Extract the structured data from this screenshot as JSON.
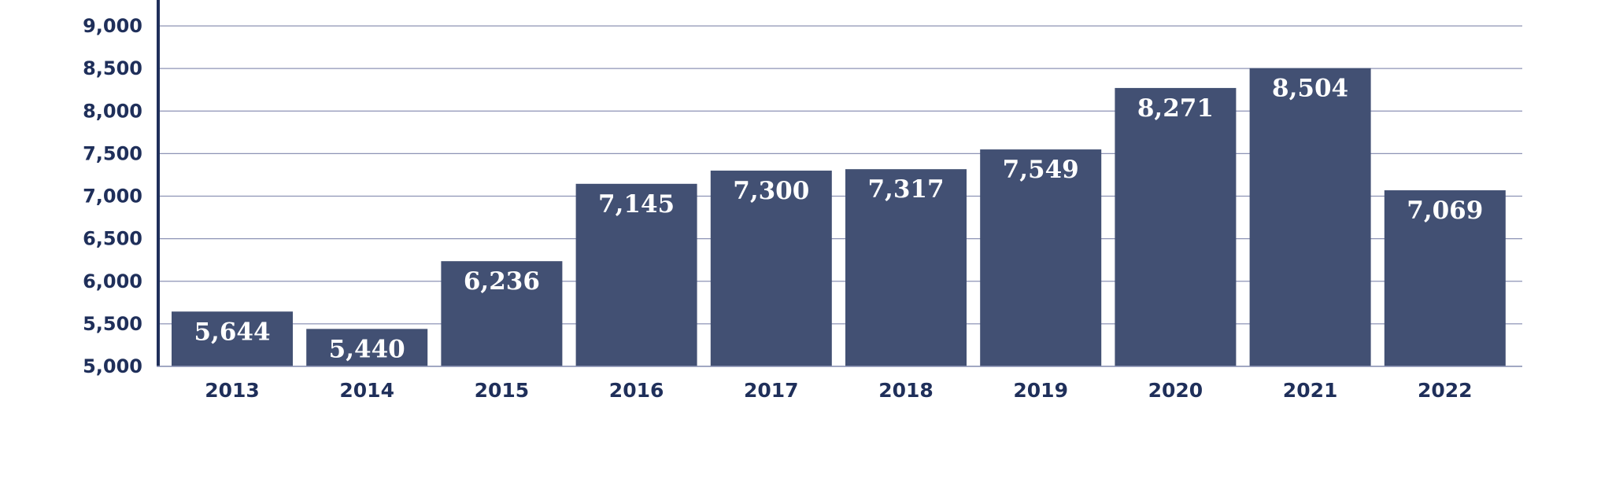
{
  "chart_data": {
    "type": "bar",
    "title": "",
    "xlabel": "",
    "ylabel": "",
    "categories": [
      "2013",
      "2014",
      "2015",
      "2016",
      "2017",
      "2018",
      "2019",
      "2020",
      "2021",
      "2022"
    ],
    "values": [
      5644,
      5440,
      6236,
      7145,
      7300,
      7317,
      7549,
      8271,
      8504,
      7069
    ],
    "value_labels": [
      "5,644",
      "5,440",
      "6,236",
      "7,145",
      "7,300",
      "7,317",
      "7,549",
      "8,271",
      "8,504",
      "7,069"
    ],
    "ylim": [
      5000,
      9000
    ],
    "yticks": [
      5000,
      5500,
      6000,
      6500,
      7000,
      7500,
      8000,
      8500,
      9000
    ],
    "ytick_labels": [
      "5,000",
      "5,500",
      "6,000",
      "6,500",
      "7,000",
      "7,500",
      "8,000",
      "8,500",
      "9,000"
    ],
    "grid": true,
    "legend": "none",
    "colors": {
      "bar": "#425073",
      "grid": "#8d93b5",
      "axis": "#1f2f5a",
      "tick_text": "#1f2f5a",
      "bar_label": "#ffffff"
    }
  }
}
